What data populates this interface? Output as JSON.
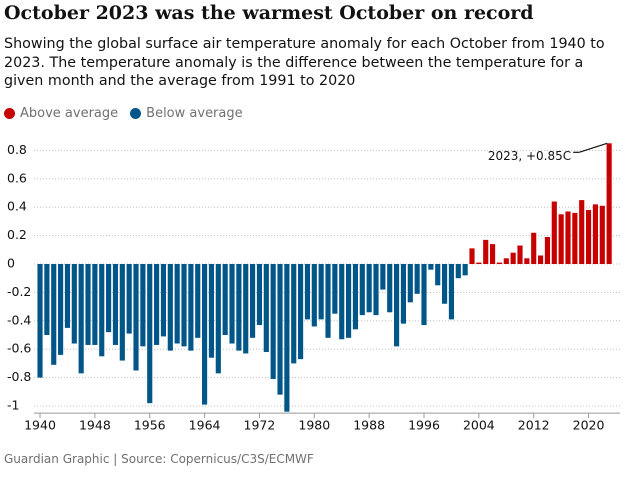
{
  "chart_data": {
    "type": "bar",
    "title": "October 2023 was the warmest October on record",
    "subtitle": "Showing the global surface air temperature anomaly for each October from 1940 to 2023. The temperature anomaly is the difference between the temperature for a given month and the average from 1991 to 2020",
    "legend": [
      {
        "name": "Above average",
        "color": "#c70000"
      },
      {
        "name": "Below average",
        "color": "#005689"
      }
    ],
    "x": [
      1940,
      1941,
      1942,
      1943,
      1944,
      1945,
      1946,
      1947,
      1948,
      1949,
      1950,
      1951,
      1952,
      1953,
      1954,
      1955,
      1956,
      1957,
      1958,
      1959,
      1960,
      1961,
      1962,
      1963,
      1964,
      1965,
      1966,
      1967,
      1968,
      1969,
      1970,
      1971,
      1972,
      1973,
      1974,
      1975,
      1976,
      1977,
      1978,
      1979,
      1980,
      1981,
      1982,
      1983,
      1984,
      1985,
      1986,
      1987,
      1988,
      1989,
      1990,
      1991,
      1992,
      1993,
      1994,
      1995,
      1996,
      1997,
      1998,
      1999,
      2000,
      2001,
      2002,
      2003,
      2004,
      2005,
      2006,
      2007,
      2008,
      2009,
      2010,
      2011,
      2012,
      2013,
      2014,
      2015,
      2016,
      2017,
      2018,
      2019,
      2020,
      2021,
      2022,
      2023
    ],
    "values": [
      -0.8,
      -0.5,
      -0.71,
      -0.64,
      -0.45,
      -0.56,
      -0.77,
      -0.57,
      -0.57,
      -0.65,
      -0.48,
      -0.57,
      -0.68,
      -0.49,
      -0.75,
      -0.58,
      -0.98,
      -0.57,
      -0.51,
      -0.61,
      -0.56,
      -0.58,
      -0.61,
      -0.52,
      -0.99,
      -0.66,
      -0.77,
      -0.5,
      -0.56,
      -0.61,
      -0.63,
      -0.52,
      -0.43,
      -0.62,
      -0.81,
      -0.92,
      -1.04,
      -0.7,
      -0.67,
      -0.39,
      -0.44,
      -0.39,
      -0.52,
      -0.35,
      -0.53,
      -0.52,
      -0.46,
      -0.36,
      -0.34,
      -0.36,
      -0.18,
      -0.34,
      -0.58,
      -0.42,
      -0.27,
      -0.21,
      -0.43,
      -0.04,
      -0.15,
      -0.28,
      -0.39,
      -0.1,
      -0.08,
      0.11,
      0.01,
      0.17,
      0.14,
      0.01,
      0.04,
      0.08,
      0.13,
      0.04,
      0.22,
      0.06,
      0.19,
      0.44,
      0.35,
      0.37,
      0.36,
      0.45,
      0.38,
      0.42,
      0.41,
      0.85
    ],
    "xlim": [
      1939.5,
      2024
    ],
    "xticks": [
      1940,
      1948,
      1956,
      1964,
      1972,
      1980,
      1988,
      1996,
      2004,
      2012,
      2020
    ],
    "ylim": [
      -1.05,
      0.9
    ],
    "yticks": [
      0.8,
      0.6,
      0.4,
      0.2,
      0,
      -0.2,
      -0.4,
      -0.6,
      -0.8,
      -1
    ],
    "grid": true,
    "annotation": "2023, +0.85C",
    "source": "Guardian Graphic | Source: Copernicus/C3S/ECMWF"
  }
}
